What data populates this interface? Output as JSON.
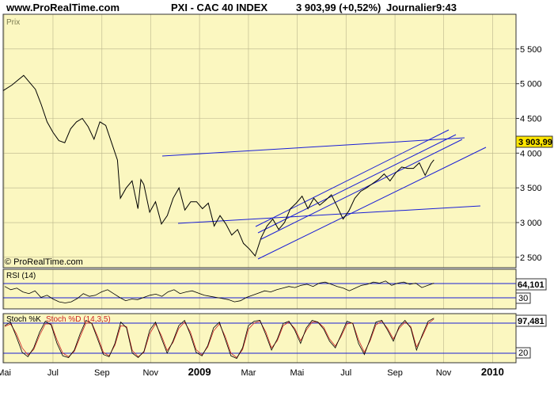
{
  "header": {
    "site": "www.ProRealTime.com",
    "instrument": "PXI - CAC 40 INDEX",
    "last": "3 903,99 (+0,52%)",
    "period": "Journalier",
    "time": "9:43"
  },
  "watermark": "© ProRealTime.com",
  "colors": {
    "background": "#fbf7c0",
    "trendlines": "#1a1fd6",
    "price_tag": "#ffe600",
    "stoch_d": "#cc2222"
  },
  "chart_data": [
    {
      "type": "line",
      "panel": "price",
      "title": "Prix",
      "ylim": [
        2350,
        6000
      ],
      "yticks": [
        2500,
        3000,
        3500,
        4000,
        4500,
        5000,
        5500
      ],
      "ytick_labels": [
        "2 500",
        "3 000",
        "3 500",
        "4 000",
        "4 500",
        "5 000",
        "5 500"
      ],
      "x_labels": [
        "Mai",
        "Jul",
        "Sep",
        "Nov",
        "2009",
        "Mar",
        "Mai",
        "Jul",
        "Sep",
        "Nov",
        "2010"
      ],
      "xlim": [
        2008.33,
        2010.08
      ],
      "x_tick_dates": [
        2008.333,
        2008.5,
        2008.667,
        2008.833,
        2009.0,
        2009.167,
        2009.333,
        2009.5,
        2009.667,
        2009.833,
        2010.0
      ],
      "series": [
        {
          "values_x": [
            2008.33,
            2008.36,
            2008.38,
            2008.4,
            2008.42,
            2008.44,
            2008.46,
            2008.48,
            2008.5,
            2008.52,
            2008.54,
            2008.56,
            2008.58,
            2008.6,
            2008.62,
            2008.64,
            2008.66,
            2008.68,
            2008.7,
            2008.72,
            2008.73,
            2008.75,
            2008.77,
            2008.79,
            2008.8,
            2008.81,
            2008.83,
            2008.85,
            2008.87,
            2008.89,
            2008.91,
            2008.93,
            2008.95,
            2008.97,
            2008.99,
            2009.01,
            2009.03,
            2009.05,
            2009.07,
            2009.09,
            2009.11,
            2009.13,
            2009.15,
            2009.17,
            2009.19,
            2009.21,
            2009.23,
            2009.25,
            2009.27,
            2009.29,
            2009.31,
            2009.33,
            2009.35,
            2009.37,
            2009.39,
            2009.41,
            2009.43,
            2009.45,
            2009.47,
            2009.49,
            2009.51,
            2009.53,
            2009.55,
            2009.57,
            2009.59,
            2009.61,
            2009.63,
            2009.65,
            2009.67,
            2009.69,
            2009.71,
            2009.73,
            2009.75,
            2009.77,
            2009.79,
            2009.8
          ],
          "values": [
            4900,
            4980,
            5050,
            5120,
            5020,
            4920,
            4700,
            4450,
            4300,
            4180,
            4150,
            4350,
            4450,
            4500,
            4380,
            4200,
            4450,
            4400,
            4150,
            3900,
            3350,
            3500,
            3600,
            3200,
            3620,
            3550,
            3150,
            3300,
            2980,
            3100,
            3350,
            3500,
            3180,
            3300,
            3300,
            3200,
            3280,
            2950,
            3100,
            2980,
            2820,
            2900,
            2700,
            2620,
            2520,
            2780,
            2950,
            3050,
            2900,
            3000,
            3200,
            3280,
            3380,
            3200,
            3350,
            3250,
            3320,
            3400,
            3230,
            3050,
            3170,
            3350,
            3450,
            3500,
            3560,
            3620,
            3700,
            3600,
            3720,
            3800,
            3780,
            3780,
            3860,
            3680,
            3850,
            3904
          ]
        }
      ],
      "last_value_label": "3 903,99"
    },
    {
      "type": "line",
      "panel": "rsi",
      "title": "RSI (14)",
      "ylim": [
        20,
        85
      ],
      "levels": [
        70,
        30
      ],
      "level_labels": [
        "30"
      ],
      "last_value_label": "64,101",
      "series": [
        {
          "values": [
            58,
            52,
            55,
            48,
            45,
            50,
            38,
            42,
            35,
            30,
            28,
            30,
            36,
            45,
            40,
            42,
            48,
            52,
            45,
            38,
            32,
            35,
            34,
            38,
            42,
            44,
            40,
            48,
            52,
            45,
            48,
            50,
            46,
            42,
            40,
            38,
            36,
            34,
            30,
            32,
            38,
            42,
            46,
            50,
            48,
            52,
            55,
            58,
            56,
            60,
            62,
            58,
            64,
            66,
            62,
            58,
            55,
            50,
            55,
            60,
            62,
            66,
            64,
            68,
            60,
            64,
            66,
            62,
            64,
            56,
            60,
            64
          ]
        }
      ]
    },
    {
      "type": "line",
      "panel": "stochastic",
      "title": "Stoch %K Stoch %D (14,3,5)",
      "ylim": [
        0,
        100
      ],
      "levels": [
        80,
        20
      ],
      "level_labels": [
        "20"
      ],
      "last_value_label": "97,481",
      "series": [
        {
          "name": "Stoch %K",
          "values": [
            80,
            88,
            55,
            20,
            10,
            30,
            65,
            90,
            82,
            40,
            12,
            8,
            25,
            62,
            92,
            85,
            50,
            15,
            10,
            40,
            88,
            75,
            18,
            8,
            22,
            70,
            88,
            52,
            18,
            45,
            80,
            92,
            60,
            20,
            12,
            35,
            75,
            88,
            50,
            12,
            6,
            30,
            80,
            90,
            92,
            60,
            25,
            50,
            85,
            90,
            70,
            40,
            75,
            92,
            88,
            72,
            45,
            30,
            60,
            90,
            85,
            40,
            15,
            50,
            88,
            92,
            70,
            45,
            78,
            92,
            75,
            25,
            60,
            90,
            97
          ]
        },
        {
          "name": "Stoch %D",
          "values": [
            78,
            84,
            62,
            30,
            14,
            26,
            58,
            84,
            84,
            48,
            18,
            10,
            22,
            55,
            86,
            86,
            56,
            20,
            12,
            36,
            80,
            78,
            24,
            10,
            20,
            62,
            84,
            58,
            24,
            42,
            74,
            88,
            66,
            26,
            14,
            32,
            68,
            84,
            56,
            18,
            8,
            26,
            72,
            86,
            90,
            66,
            30,
            46,
            80,
            88,
            74,
            46,
            70,
            88,
            88,
            76,
            50,
            34,
            56,
            84,
            86,
            48,
            20,
            46,
            82,
            90,
            74,
            50,
            74,
            88,
            78,
            32,
            56,
            85,
            95
          ]
        }
      ]
    }
  ]
}
